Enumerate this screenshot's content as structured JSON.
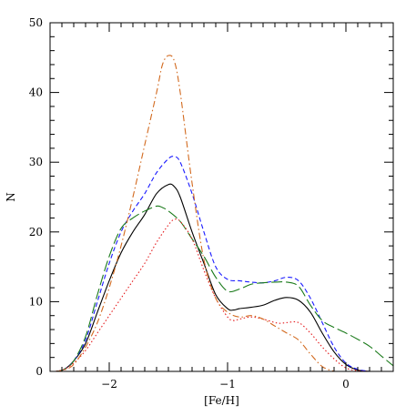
{
  "chart_data": {
    "type": "line",
    "title": "",
    "xlabel": "[Fe/H]",
    "ylabel": "N",
    "xlim": [
      -2.5,
      0.4
    ],
    "ylim": [
      0,
      50
    ],
    "x_ticks": [
      -2,
      -1,
      0
    ],
    "x_tick_labels": [
      "−2",
      "−1",
      "0"
    ],
    "y_ticks": [
      0,
      10,
      20,
      30,
      40,
      50
    ],
    "y_tick_labels": [
      "0",
      "10",
      "20",
      "30",
      "40",
      "50"
    ],
    "grid": false,
    "legend": "none",
    "series": [
      {
        "color": "#000000",
        "dash": "solid",
        "points": [
          [
            -2.45,
            0
          ],
          [
            -2.38,
            0.3
          ],
          [
            -2.3,
            1.5
          ],
          [
            -2.2,
            4
          ],
          [
            -2.1,
            8.5
          ],
          [
            -2.0,
            13
          ],
          [
            -1.9,
            17
          ],
          [
            -1.8,
            20
          ],
          [
            -1.7,
            22.5
          ],
          [
            -1.6,
            25.5
          ],
          [
            -1.5,
            26.8
          ],
          [
            -1.45,
            26.5
          ],
          [
            -1.4,
            25
          ],
          [
            -1.3,
            20
          ],
          [
            -1.2,
            15.5
          ],
          [
            -1.1,
            11
          ],
          [
            -1.0,
            9
          ],
          [
            -0.95,
            8.8
          ],
          [
            -0.9,
            9
          ],
          [
            -0.8,
            9.2
          ],
          [
            -0.7,
            9.5
          ],
          [
            -0.6,
            10.2
          ],
          [
            -0.5,
            10.6
          ],
          [
            -0.4,
            10.2
          ],
          [
            -0.3,
            8.5
          ],
          [
            -0.2,
            5.5
          ],
          [
            -0.1,
            2.8
          ],
          [
            0.0,
            1
          ],
          [
            0.1,
            0.2
          ],
          [
            0.2,
            0
          ]
        ]
      },
      {
        "color": "#1a1aff",
        "dash": "short-dash",
        "points": [
          [
            -2.45,
            0
          ],
          [
            -2.38,
            0.3
          ],
          [
            -2.3,
            1.5
          ],
          [
            -2.2,
            4.5
          ],
          [
            -2.1,
            10
          ],
          [
            -2.0,
            15.5
          ],
          [
            -1.9,
            20
          ],
          [
            -1.8,
            23
          ],
          [
            -1.7,
            25.5
          ],
          [
            -1.6,
            28.5
          ],
          [
            -1.5,
            30.5
          ],
          [
            -1.45,
            30.8
          ],
          [
            -1.4,
            30
          ],
          [
            -1.3,
            25.5
          ],
          [
            -1.2,
            20
          ],
          [
            -1.1,
            15
          ],
          [
            -1.0,
            13.2
          ],
          [
            -0.9,
            13
          ],
          [
            -0.8,
            12.8
          ],
          [
            -0.7,
            12.7
          ],
          [
            -0.6,
            13
          ],
          [
            -0.5,
            13.5
          ],
          [
            -0.4,
            13
          ],
          [
            -0.3,
            10.5
          ],
          [
            -0.2,
            7
          ],
          [
            -0.1,
            3.5
          ],
          [
            0.0,
            1.2
          ],
          [
            0.1,
            0.3
          ],
          [
            0.2,
            0
          ]
        ]
      },
      {
        "color": "#1a7a1a",
        "dash": "long-dash",
        "points": [
          [
            -2.45,
            0
          ],
          [
            -2.38,
            0.3
          ],
          [
            -2.3,
            1.5
          ],
          [
            -2.2,
            5
          ],
          [
            -2.1,
            11
          ],
          [
            -2.0,
            16.5
          ],
          [
            -1.9,
            20.5
          ],
          [
            -1.8,
            22
          ],
          [
            -1.7,
            23
          ],
          [
            -1.6,
            23.7
          ],
          [
            -1.55,
            23.5
          ],
          [
            -1.5,
            23
          ],
          [
            -1.4,
            21.5
          ],
          [
            -1.3,
            19
          ],
          [
            -1.2,
            16.5
          ],
          [
            -1.1,
            13.5
          ],
          [
            -1.0,
            11.5
          ],
          [
            -0.9,
            11.8
          ],
          [
            -0.8,
            12.5
          ],
          [
            -0.7,
            12.7
          ],
          [
            -0.6,
            12.8
          ],
          [
            -0.5,
            12.8
          ],
          [
            -0.4,
            12.2
          ],
          [
            -0.3,
            9.5
          ],
          [
            -0.2,
            7.3
          ],
          [
            -0.1,
            6.3
          ],
          [
            0.0,
            5.5
          ],
          [
            0.1,
            4.6
          ],
          [
            0.2,
            3.6
          ],
          [
            0.3,
            2.2
          ],
          [
            0.4,
            0.8
          ]
        ]
      },
      {
        "color": "#e41a1c",
        "dash": "dotted",
        "points": [
          [
            -2.45,
            0
          ],
          [
            -2.38,
            0.3
          ],
          [
            -2.3,
            1.2
          ],
          [
            -2.2,
            3
          ],
          [
            -2.1,
            5.5
          ],
          [
            -2.0,
            8
          ],
          [
            -1.9,
            10.5
          ],
          [
            -1.8,
            13
          ],
          [
            -1.7,
            15.5
          ],
          [
            -1.6,
            18.5
          ],
          [
            -1.5,
            21
          ],
          [
            -1.45,
            21.8
          ],
          [
            -1.4,
            21.5
          ],
          [
            -1.3,
            19
          ],
          [
            -1.2,
            14.5
          ],
          [
            -1.1,
            10.5
          ],
          [
            -1.0,
            7.8
          ],
          [
            -0.95,
            7.3
          ],
          [
            -0.9,
            7.5
          ],
          [
            -0.8,
            7.8
          ],
          [
            -0.7,
            7.5
          ],
          [
            -0.6,
            7
          ],
          [
            -0.55,
            6.9
          ],
          [
            -0.5,
            7
          ],
          [
            -0.4,
            7
          ],
          [
            -0.3,
            5.5
          ],
          [
            -0.2,
            3.5
          ],
          [
            -0.1,
            1.8
          ],
          [
            0.0,
            0.5
          ],
          [
            0.1,
            0.1
          ],
          [
            0.2,
            0
          ]
        ]
      },
      {
        "color": "#d2691e",
        "dash": "dash-dot",
        "points": [
          [
            -2.45,
            0
          ],
          [
            -2.38,
            0.2
          ],
          [
            -2.3,
            1
          ],
          [
            -2.2,
            3.5
          ],
          [
            -2.1,
            7
          ],
          [
            -2.0,
            12
          ],
          [
            -1.9,
            18
          ],
          [
            -1.8,
            25
          ],
          [
            -1.7,
            32.5
          ],
          [
            -1.6,
            40
          ],
          [
            -1.55,
            44
          ],
          [
            -1.5,
            45.3
          ],
          [
            -1.45,
            44.5
          ],
          [
            -1.4,
            40
          ],
          [
            -1.3,
            27
          ],
          [
            -1.2,
            16
          ],
          [
            -1.1,
            10.5
          ],
          [
            -1.0,
            8.5
          ],
          [
            -0.9,
            7.8
          ],
          [
            -0.8,
            8
          ],
          [
            -0.7,
            7.5
          ],
          [
            -0.6,
            6.5
          ],
          [
            -0.5,
            5.5
          ],
          [
            -0.4,
            4.5
          ],
          [
            -0.3,
            2.5
          ],
          [
            -0.2,
            0.7
          ],
          [
            -0.1,
            0
          ]
        ]
      }
    ]
  }
}
